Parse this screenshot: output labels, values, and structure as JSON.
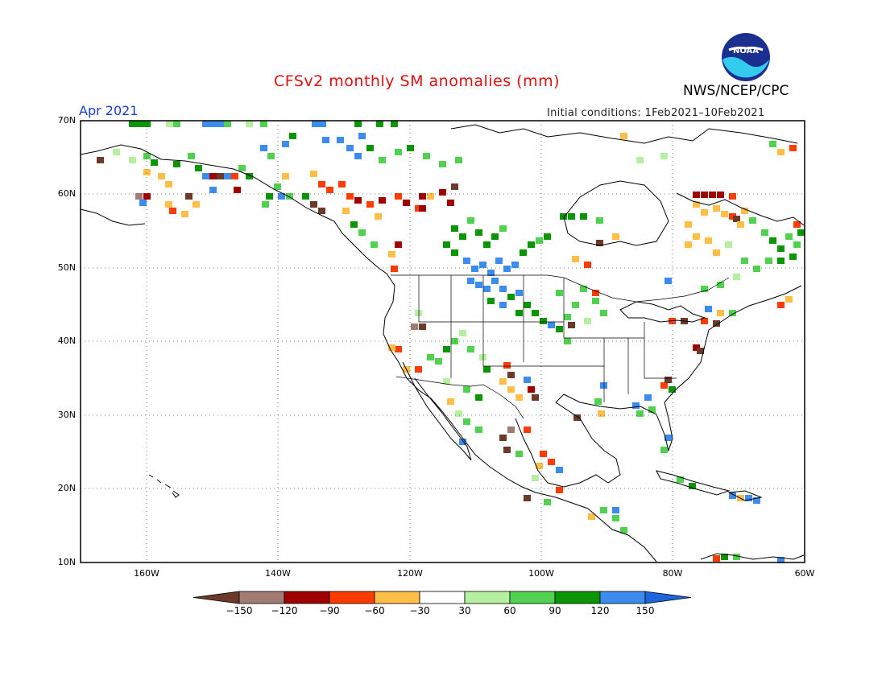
{
  "title": "CFSv2 monthly SM anomalies (mm)",
  "agency": "NWS/NCEP/CPC",
  "logo_text": "NOAA",
  "valid_month": "Apr 2021",
  "initial_conditions": "Initial conditions: 1Feb2021–10Feb2021",
  "map": {
    "lat_labels": [
      "70N",
      "60N",
      "50N",
      "40N",
      "30N",
      "20N",
      "10N"
    ],
    "lon_labels": [
      "160W",
      "140W",
      "120W",
      "100W",
      "80W",
      "60W"
    ]
  },
  "colorbar": {
    "labels": [
      "−150",
      "−120",
      "−90",
      "−60",
      "−30",
      "30",
      "60",
      "90",
      "120",
      "150"
    ],
    "colors": {
      "lt_neg150": "#6b3a2a",
      "neg150_neg120": "#a07c72",
      "neg120_neg90": "#a00000",
      "neg90_neg60": "#ff3c00",
      "neg60_neg30": "#ffbe46",
      "neg30_30": "#ffffff",
      "30_60": "#b4f0a0",
      "60_90": "#50d250",
      "90_120": "#0a9600",
      "120_150": "#3c8cf0",
      "gt150": "#1e64dc"
    }
  }
}
